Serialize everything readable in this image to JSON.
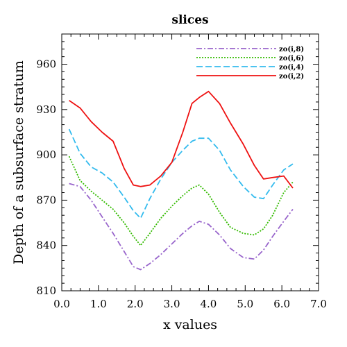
{
  "chart_data": {
    "type": "line",
    "title": "slices",
    "xlabel": "x values",
    "ylabel": "Depth of a subsurface stratum",
    "xlim": [
      0,
      7
    ],
    "ylim": [
      810,
      980
    ],
    "xticks": [
      "0.0",
      "1.0",
      "2.0",
      "3.0",
      "4.0",
      "5.0",
      "6.0",
      "7.0"
    ],
    "yticks": [
      "810",
      "840",
      "870",
      "900",
      "930",
      "960"
    ],
    "legend_position": "top-right",
    "series": [
      {
        "name": "zo(i,8)",
        "color": "#9966cc",
        "style": "dashdot",
        "x": [
          0.2,
          0.5,
          0.8,
          1.1,
          1.4,
          1.7,
          1.95,
          2.15,
          2.4,
          2.7,
          3.0,
          3.3,
          3.55,
          3.75,
          4.0,
          4.3,
          4.6,
          4.95,
          5.25,
          5.5,
          5.75,
          6.05,
          6.3
        ],
        "y": [
          881,
          879,
          870,
          859,
          848,
          836,
          826,
          824,
          828,
          834,
          841,
          848,
          853,
          856,
          854,
          847,
          838,
          832,
          831,
          837,
          846,
          856,
          864
        ]
      },
      {
        "name": "zo(i,6)",
        "color": "#33bb00",
        "style": "dotted",
        "x": [
          0.2,
          0.5,
          0.8,
          1.1,
          1.4,
          1.7,
          1.95,
          2.15,
          2.4,
          2.7,
          3.0,
          3.3,
          3.55,
          3.75,
          4.0,
          4.3,
          4.6,
          4.95,
          5.25,
          5.5,
          5.75,
          6.05,
          6.3
        ],
        "y": [
          899,
          883,
          876,
          870,
          864,
          855,
          846,
          840,
          848,
          858,
          866,
          873,
          878,
          880,
          874,
          862,
          852,
          848,
          847,
          851,
          860,
          875,
          882
        ]
      },
      {
        "name": "zo(i,4)",
        "color": "#33bbee",
        "style": "dashed",
        "x": [
          0.2,
          0.5,
          0.8,
          1.1,
          1.4,
          1.7,
          1.95,
          2.15,
          2.4,
          2.7,
          3.0,
          3.3,
          3.55,
          3.75,
          4.0,
          4.3,
          4.6,
          4.95,
          5.25,
          5.5,
          5.75,
          6.05,
          6.3
        ],
        "y": [
          917,
          901,
          892,
          888,
          882,
          872,
          863,
          858,
          871,
          884,
          895,
          903,
          909,
          911,
          911,
          903,
          890,
          879,
          872,
          871,
          880,
          890,
          894
        ]
      },
      {
        "name": "zo(i,2)",
        "color": "#ee1111",
        "style": "solid",
        "x": [
          0.2,
          0.5,
          0.8,
          1.1,
          1.4,
          1.7,
          1.95,
          2.15,
          2.4,
          2.7,
          3.0,
          3.3,
          3.55,
          3.75,
          4.0,
          4.3,
          4.6,
          4.95,
          5.25,
          5.5,
          5.75,
          6.05,
          6.3
        ],
        "y": [
          936,
          931,
          922,
          915,
          909,
          891,
          880,
          879,
          880,
          886,
          895,
          915,
          934,
          938,
          942,
          934,
          921,
          907,
          893,
          884,
          885,
          886,
          878
        ]
      }
    ]
  }
}
